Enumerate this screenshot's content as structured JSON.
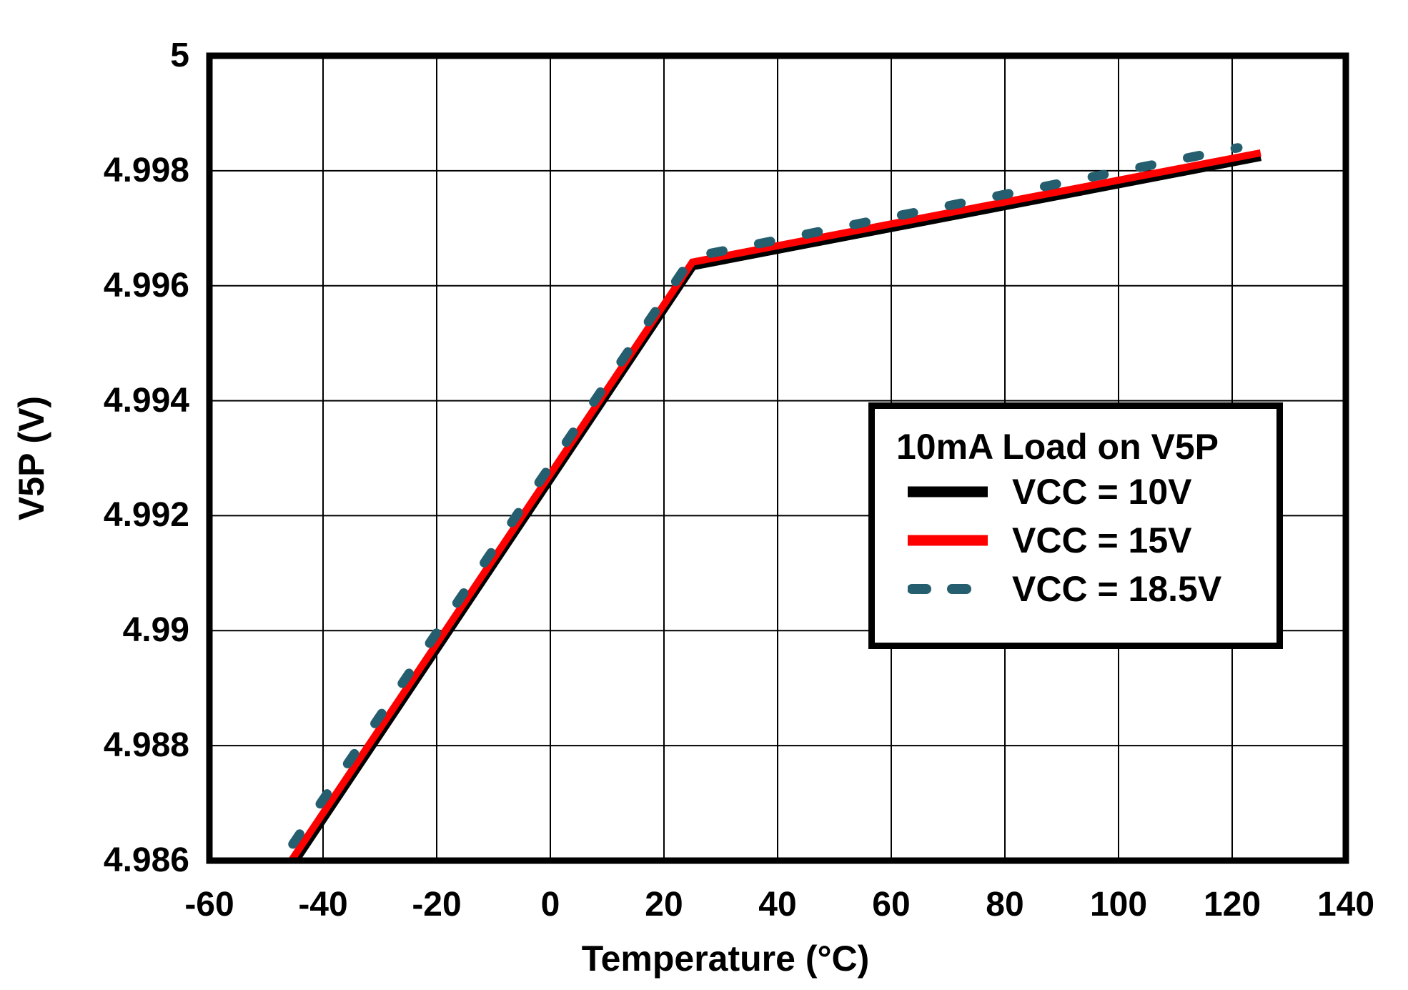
{
  "figure": {
    "background": "#ffffff"
  },
  "axes": {
    "x_title": "Temperature (°C)",
    "y_title": "V5P (V)"
  },
  "legend": {
    "title": "10mA Load on V5P",
    "entries": [
      "VCC = 10V",
      "VCC = 15V",
      "VCC = 18.5V"
    ]
  },
  "chart_data": {
    "type": "line",
    "title": "",
    "xlabel": "Temperature (°C)",
    "ylabel": "V5P (V)",
    "xlim": [
      -60,
      140
    ],
    "ylim": [
      4.986,
      5
    ],
    "xticks": [
      -60,
      -40,
      -20,
      0,
      20,
      40,
      60,
      80,
      100,
      120,
      140
    ],
    "xtick_labels": [
      "-60",
      "-40",
      "-20",
      "0",
      "20",
      "40",
      "60",
      "80",
      "100",
      "120",
      "140"
    ],
    "yticks": [
      5,
      4.998,
      4.996,
      4.994,
      4.992,
      4.99,
      4.988,
      4.986
    ],
    "ytick_labels": [
      "5",
      "4.998",
      "4.996",
      "4.994",
      "4.992",
      "4.99",
      "4.988",
      "4.986"
    ],
    "grid": true,
    "grid_color": "#000000",
    "border_color": "#000000",
    "legend_title": "10mA Load on V5P",
    "legend_position": "inside-right",
    "series": [
      {
        "name": "VCC = 10V",
        "color": "#000000",
        "style": "solid",
        "width": 13,
        "points": [
          [
            -45,
            4.986
          ],
          [
            25,
            4.99635
          ],
          [
            125,
            4.99825
          ]
        ]
      },
      {
        "name": "VCC = 15V",
        "color": "#ff0000",
        "style": "solid",
        "width": 10,
        "points": [
          [
            -45.6,
            4.986
          ],
          [
            25,
            4.99641
          ],
          [
            125,
            4.99831
          ]
        ]
      },
      {
        "name": "VCC = 18.5V",
        "color": "#255e6e",
        "style": "dashed",
        "width": 13,
        "points": [
          [
            -47.3,
            4.986
          ],
          [
            25,
            4.9965
          ],
          [
            121,
            4.9984
          ]
        ]
      }
    ]
  }
}
